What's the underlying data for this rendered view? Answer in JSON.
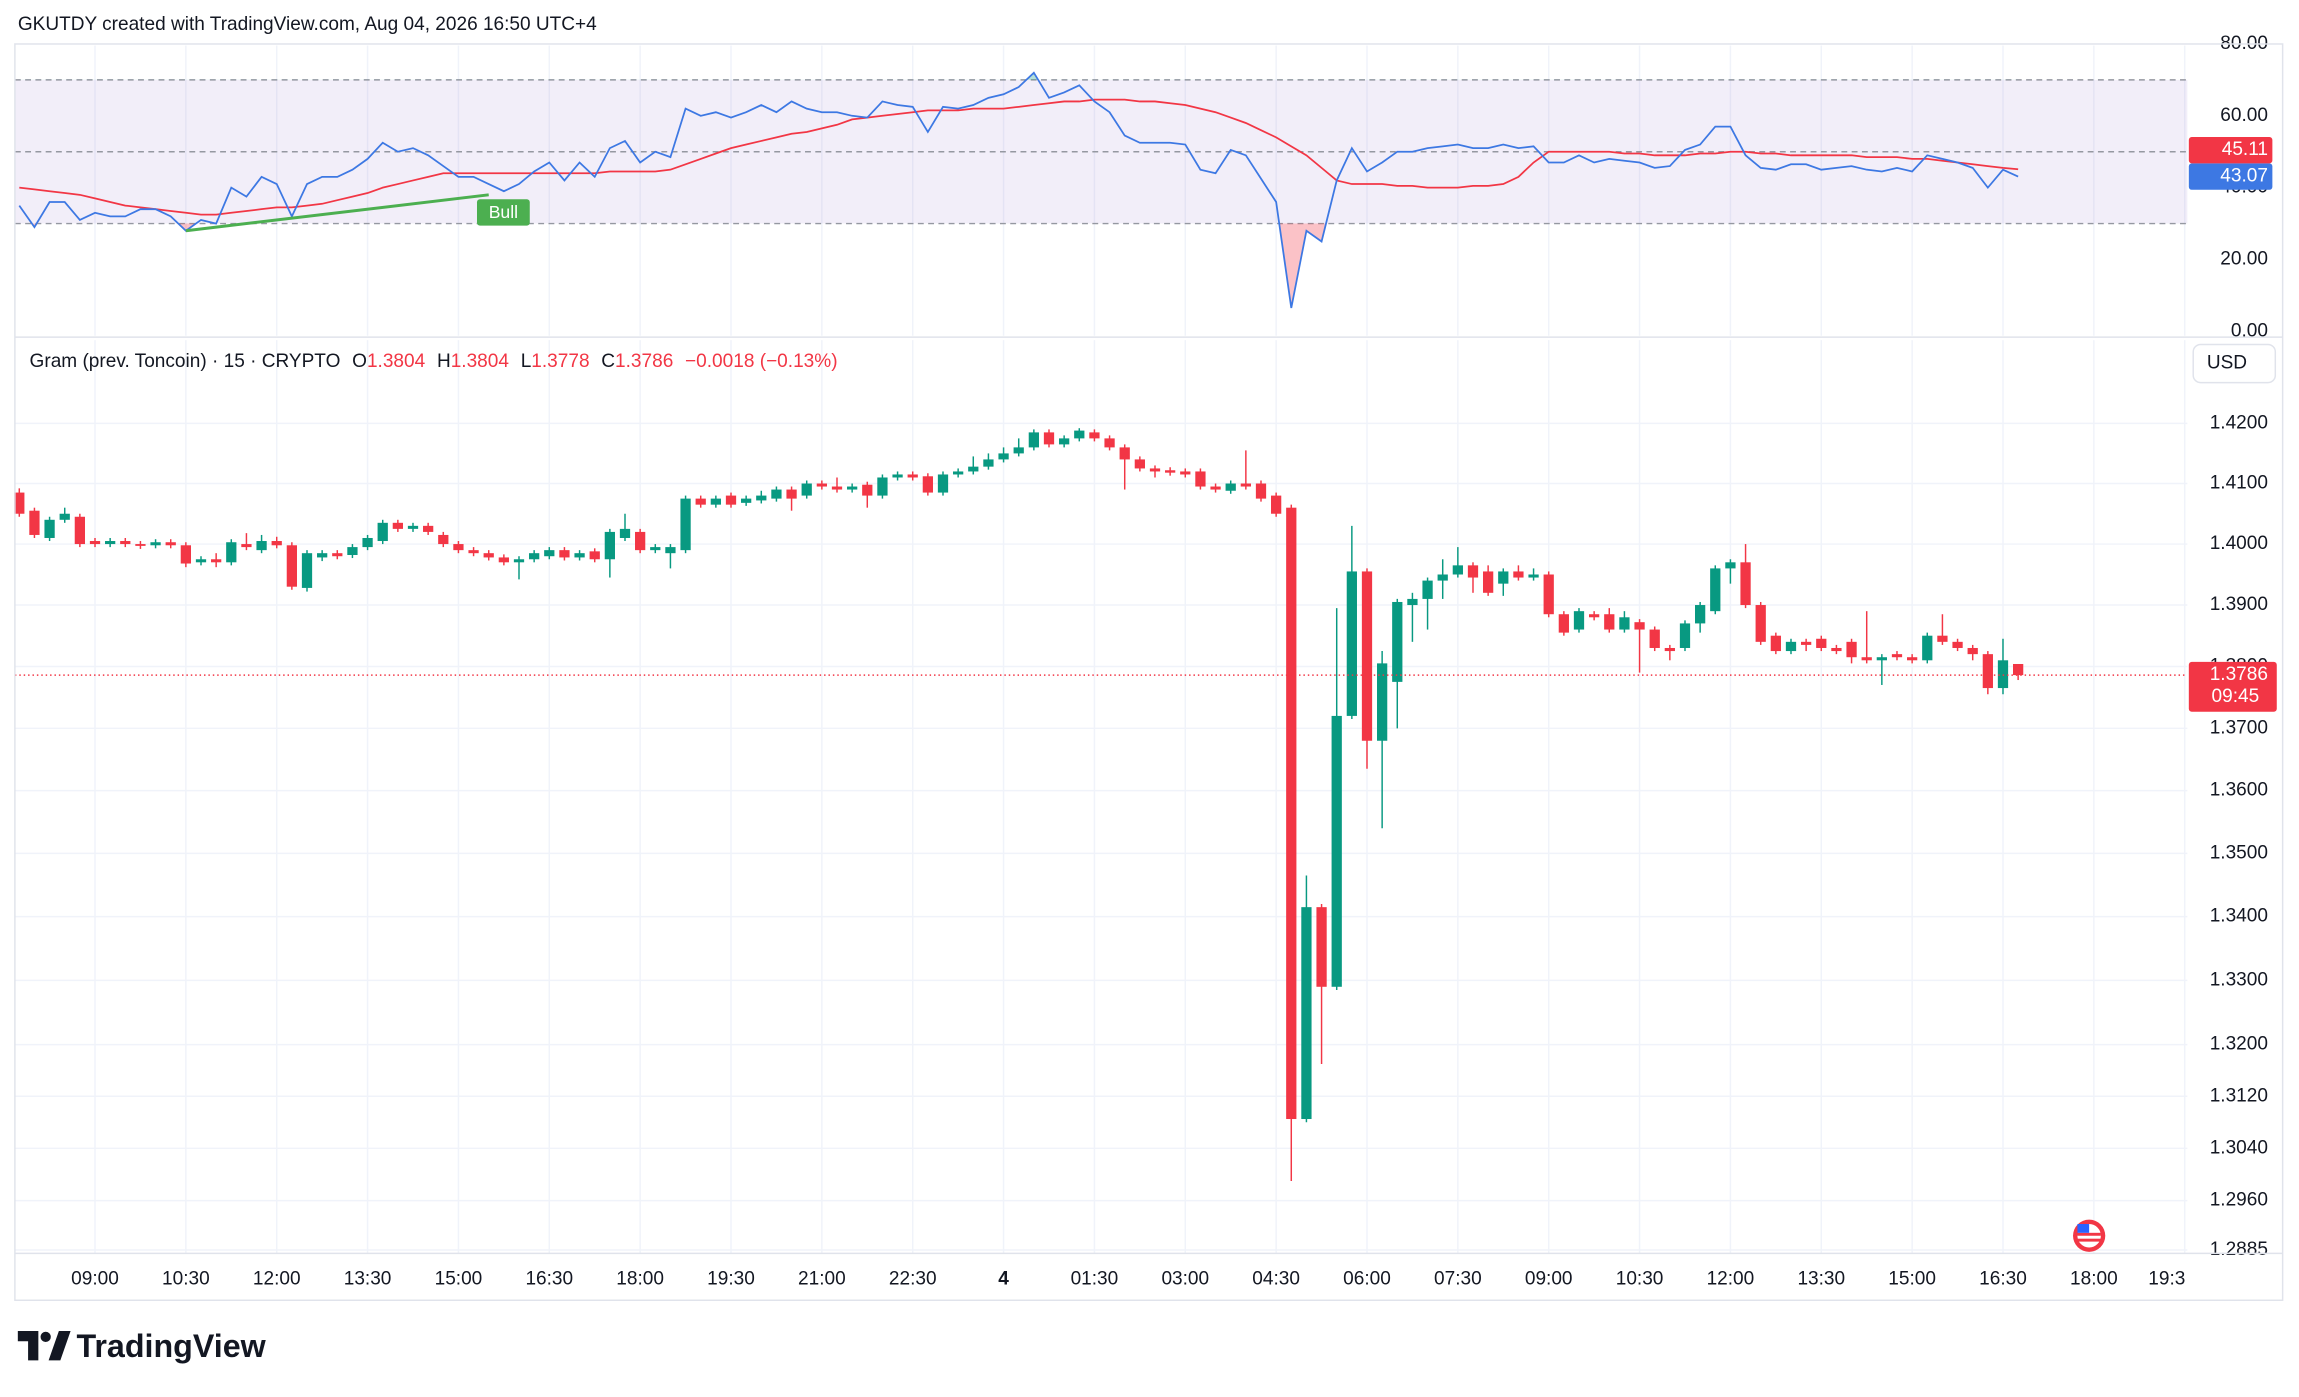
{
  "header": "GKUTDY created with TradingView.com, Aug 04, 2026 16:50 UTC+4",
  "brand": "TradingView",
  "chart_data": [
    {
      "type": "candlestick",
      "legend": {
        "symbol": "Gram (prev. Toncoin) · 15 · CRYPTO",
        "o_label": "O",
        "h_label": "H",
        "l_label": "L",
        "c_label": "C",
        "change": "−0.0018 (−0.13%)"
      },
      "currency": "USD",
      "countdown": "09:45",
      "log_scale": true,
      "grid": true,
      "up_color": "#089981",
      "down_color": "#f23645",
      "ylim": [
        1.288,
        1.432
      ],
      "yticks": [
        {
          "value": 1.42,
          "label": "1.4200"
        },
        {
          "value": 1.41,
          "label": "1.4100"
        },
        {
          "value": 1.4,
          "label": "1.4000"
        },
        {
          "value": 1.39,
          "label": "1.3900"
        },
        {
          "value": 1.38,
          "label": "1.3800"
        },
        {
          "value": 1.37,
          "label": "1.3700"
        },
        {
          "value": 1.36,
          "label": "1.3600"
        },
        {
          "value": 1.35,
          "label": "1.3500"
        },
        {
          "value": 1.34,
          "label": "1.3400"
        },
        {
          "value": 1.33,
          "label": "1.3300"
        },
        {
          "value": 1.32,
          "label": "1.3200"
        },
        {
          "value": 1.312,
          "label": "1.3120"
        },
        {
          "value": 1.304,
          "label": "1.3040"
        },
        {
          "value": 1.296,
          "label": "1.2960"
        },
        {
          "value": 1.2885,
          "label": "1.2885"
        }
      ],
      "xticks": [
        {
          "value": 5,
          "label": "09:00"
        },
        {
          "value": 11,
          "label": "10:30"
        },
        {
          "value": 17,
          "label": "12:00"
        },
        {
          "value": 23,
          "label": "13:30"
        },
        {
          "value": 29,
          "label": "15:00"
        },
        {
          "value": 35,
          "label": "16:30"
        },
        {
          "value": 41,
          "label": "18:00"
        },
        {
          "value": 47,
          "label": "19:30"
        },
        {
          "value": 53,
          "label": "21:00"
        },
        {
          "value": 59,
          "label": "22:30"
        },
        {
          "value": 65,
          "label": "4"
        },
        {
          "value": 71,
          "label": "01:30"
        },
        {
          "value": 77,
          "label": "03:00"
        },
        {
          "value": 83,
          "label": "04:30"
        },
        {
          "value": 89,
          "label": "06:00"
        },
        {
          "value": 95,
          "label": "07:30"
        },
        {
          "value": 101,
          "label": "09:00"
        },
        {
          "value": 107,
          "label": "10:30"
        },
        {
          "value": 113,
          "label": "12:00"
        },
        {
          "value": 119,
          "label": "13:30"
        },
        {
          "value": 125,
          "label": "15:00"
        },
        {
          "value": 131,
          "label": "16:30"
        },
        {
          "value": 137,
          "label": "18:00"
        },
        {
          "value": 143,
          "label": "19:3"
        }
      ],
      "open": [
        1.4085,
        1.4055,
        1.401,
        1.404,
        1.4045,
        1.4005,
        1.4,
        1.4005,
        1.4,
        1.3998,
        1.4003,
        1.3998,
        1.397,
        1.3975,
        1.397,
        1.4,
        1.399,
        1.4005,
        1.3998,
        1.3928,
        1.3978,
        1.3985,
        1.3982,
        1.3995,
        1.4005,
        1.4035,
        1.4025,
        1.403,
        1.4015,
        1.4,
        1.399,
        1.3985,
        1.3978,
        1.397,
        1.3975,
        1.398,
        1.399,
        1.3978,
        1.3988,
        1.3975,
        1.401,
        1.402,
        1.399,
        1.3985,
        1.399,
        1.4075,
        1.4065,
        1.408,
        1.4068,
        1.4072,
        1.4075,
        1.409,
        1.408,
        1.41,
        1.4095,
        1.409,
        1.4098,
        1.408,
        1.411,
        1.4115,
        1.4112,
        1.4085,
        1.4115,
        1.412,
        1.4128,
        1.414,
        1.415,
        1.416,
        1.4185,
        1.4165,
        1.4175,
        1.4185,
        1.4175,
        1.416,
        1.414,
        1.4125,
        1.4122,
        1.412,
        1.412,
        1.4095,
        1.4088,
        1.41,
        1.41,
        1.408,
        1.406,
        1.3085,
        1.3415,
        1.329,
        1.372,
        1.3955,
        1.368,
        1.3775,
        1.39,
        1.391,
        1.394,
        1.395,
        1.3965,
        1.3955,
        1.3935,
        1.3955,
        1.3945,
        1.395,
        1.3885,
        1.386,
        1.3885,
        1.3885,
        1.386,
        1.3872,
        1.386,
        1.383,
        1.383,
        1.387,
        1.389,
        1.396,
        1.397,
        1.39,
        1.385,
        1.3825,
        1.384,
        1.3845,
        1.383,
        1.384,
        1.3815,
        1.381,
        1.382,
        1.3815,
        1.381,
        1.385,
        1.384,
        1.383,
        1.382,
        1.3765,
        1.3804
      ],
      "high": [
        1.4092,
        1.406,
        1.4045,
        1.406,
        1.405,
        1.401,
        1.401,
        1.401,
        1.4005,
        1.4008,
        1.4008,
        1.4003,
        1.398,
        1.3985,
        1.4008,
        1.4018,
        1.4015,
        1.4012,
        1.4003,
        1.399,
        1.399,
        1.399,
        1.4,
        1.4015,
        1.404,
        1.404,
        1.4035,
        1.4035,
        1.402,
        1.4005,
        1.3995,
        1.399,
        1.3983,
        1.398,
        1.399,
        1.3995,
        1.3995,
        1.399,
        1.3993,
        1.4025,
        1.405,
        1.4025,
        1.4,
        1.4,
        1.408,
        1.408,
        1.408,
        1.4085,
        1.408,
        1.4088,
        1.4095,
        1.4095,
        1.4105,
        1.4105,
        1.411,
        1.41,
        1.4103,
        1.4115,
        1.412,
        1.412,
        1.4117,
        1.412,
        1.4125,
        1.4145,
        1.415,
        1.416,
        1.4175,
        1.419,
        1.419,
        1.418,
        1.4192,
        1.419,
        1.418,
        1.4165,
        1.4145,
        1.413,
        1.4127,
        1.4125,
        1.4125,
        1.41,
        1.4105,
        1.4155,
        1.4105,
        1.4085,
        1.4065,
        1.3465,
        1.342,
        1.3895,
        1.403,
        1.396,
        1.3825,
        1.391,
        1.392,
        1.3945,
        1.3975,
        1.3995,
        1.397,
        1.3965,
        1.396,
        1.3965,
        1.396,
        1.3955,
        1.389,
        1.3895,
        1.389,
        1.3895,
        1.389,
        1.3877,
        1.3865,
        1.3835,
        1.3875,
        1.3905,
        1.3965,
        1.3975,
        1.4,
        1.3905,
        1.3855,
        1.3845,
        1.3845,
        1.385,
        1.3835,
        1.3845,
        1.389,
        1.382,
        1.3825,
        1.382,
        1.3855,
        1.3885,
        1.3845,
        1.3835,
        1.3825,
        1.3845,
        1.3804
      ],
      "low": [
        1.4045,
        1.401,
        1.4005,
        1.4035,
        1.3995,
        1.3995,
        1.3995,
        1.3995,
        1.3992,
        1.3993,
        1.3993,
        1.3962,
        1.3965,
        1.3962,
        1.3965,
        1.399,
        1.3985,
        1.3993,
        1.3925,
        1.3922,
        1.3972,
        1.3975,
        1.3977,
        1.399,
        1.4,
        1.402,
        1.402,
        1.4015,
        1.3995,
        1.3985,
        1.398,
        1.3973,
        1.3965,
        1.3942,
        1.397,
        1.3975,
        1.3973,
        1.3973,
        1.397,
        1.3945,
        1.4005,
        1.3985,
        1.3985,
        1.396,
        1.3985,
        1.406,
        1.406,
        1.406,
        1.4063,
        1.4067,
        1.407,
        1.4055,
        1.4075,
        1.409,
        1.4085,
        1.4085,
        1.406,
        1.4075,
        1.4105,
        1.4105,
        1.408,
        1.408,
        1.411,
        1.4115,
        1.4123,
        1.4135,
        1.4145,
        1.4155,
        1.416,
        1.416,
        1.417,
        1.417,
        1.4155,
        1.409,
        1.412,
        1.411,
        1.4113,
        1.411,
        1.409,
        1.4085,
        1.4083,
        1.409,
        1.407,
        1.4045,
        1.299,
        1.308,
        1.317,
        1.3285,
        1.3715,
        1.3635,
        1.354,
        1.37,
        1.384,
        1.386,
        1.391,
        1.3945,
        1.392,
        1.3915,
        1.3915,
        1.394,
        1.394,
        1.388,
        1.385,
        1.3855,
        1.3875,
        1.3855,
        1.3855,
        1.379,
        1.3825,
        1.381,
        1.3825,
        1.3855,
        1.3885,
        1.3935,
        1.3895,
        1.3835,
        1.382,
        1.382,
        1.3825,
        1.3825,
        1.382,
        1.3805,
        1.3805,
        1.377,
        1.381,
        1.3805,
        1.3805,
        1.3835,
        1.3825,
        1.381,
        1.3755,
        1.3755,
        1.3778
      ],
      "close": [
        1.405,
        1.4015,
        1.404,
        1.405,
        1.4,
        1.4,
        1.4005,
        1.4,
        1.3997,
        1.4003,
        1.3998,
        1.3968,
        1.3975,
        1.397,
        1.4003,
        1.3995,
        1.4005,
        1.3998,
        1.393,
        1.3985,
        1.3985,
        1.398,
        1.3995,
        1.401,
        1.4035,
        1.4025,
        1.403,
        1.402,
        1.4,
        1.399,
        1.3985,
        1.3978,
        1.397,
        1.3975,
        1.3985,
        1.399,
        1.3978,
        1.3985,
        1.3975,
        1.402,
        1.4025,
        1.399,
        1.3995,
        1.3995,
        1.4075,
        1.4065,
        1.4075,
        1.4065,
        1.4075,
        1.408,
        1.409,
        1.4075,
        1.41,
        1.4095,
        1.409,
        1.4095,
        1.408,
        1.411,
        1.4115,
        1.411,
        1.4085,
        1.4115,
        1.412,
        1.4128,
        1.414,
        1.415,
        1.416,
        1.4185,
        1.4165,
        1.4175,
        1.4188,
        1.4175,
        1.416,
        1.414,
        1.4125,
        1.412,
        1.4118,
        1.4115,
        1.4095,
        1.409,
        1.41,
        1.4095,
        1.4075,
        1.405,
        1.3085,
        1.3415,
        1.329,
        1.372,
        1.3955,
        1.368,
        1.3805,
        1.3905,
        1.391,
        1.394,
        1.395,
        1.3965,
        1.3945,
        1.392,
        1.3955,
        1.3945,
        1.395,
        1.3885,
        1.3855,
        1.389,
        1.388,
        1.386,
        1.388,
        1.386,
        1.383,
        1.3825,
        1.387,
        1.39,
        1.396,
        1.397,
        1.39,
        1.384,
        1.3825,
        1.384,
        1.3835,
        1.383,
        1.3825,
        1.3815,
        1.381,
        1.3815,
        1.3815,
        1.381,
        1.385,
        1.384,
        1.383,
        1.382,
        1.3765,
        1.381,
        1.3786
      ]
    },
    {
      "type": "line",
      "ylim": [
        0,
        80
      ],
      "yticks": [
        {
          "value": 0,
          "label": "0.00"
        },
        {
          "value": 20,
          "label": "20.00"
        },
        {
          "value": 40,
          "label": "40.00"
        },
        {
          "value": 60,
          "label": "60.00"
        },
        {
          "value": 80,
          "label": "80.00"
        }
      ],
      "band": [
        30,
        70
      ],
      "midline": 50,
      "band_color": "#7e57c2",
      "series": [
        {
          "color": "#3d78e3",
          "values": [
            35,
            29,
            36,
            36,
            31,
            33,
            32,
            32,
            34,
            34,
            32,
            28,
            31,
            30,
            40,
            37.5,
            43,
            41,
            32,
            41,
            43,
            43,
            45,
            48,
            52.5,
            50,
            51,
            49,
            46,
            43,
            43,
            41,
            39,
            41,
            44.5,
            47,
            42,
            47,
            43,
            51,
            53,
            47,
            50,
            48.5,
            62,
            60,
            61,
            59.5,
            61,
            63,
            61,
            64,
            62,
            61,
            61,
            60,
            59.5,
            64,
            63,
            62.5,
            55.5,
            62.5,
            62,
            63,
            65,
            66,
            68,
            72,
            65,
            66.5,
            68.5,
            64,
            61,
            54.5,
            52.5,
            52.5,
            52.5,
            52,
            45,
            44,
            50.5,
            49,
            42.5,
            36,
            6.5,
            28,
            25,
            42,
            51,
            44.5,
            47,
            50,
            50,
            51,
            51.5,
            52,
            51,
            51,
            52,
            51,
            51.5,
            47,
            47,
            49,
            47,
            48,
            47.5,
            47,
            45.5,
            46,
            50.5,
            52,
            57,
            57,
            49,
            45.5,
            45,
            46.5,
            46.5,
            45,
            45.5,
            46,
            45,
            44.5,
            45.5,
            44.5,
            49,
            48,
            47,
            45.5,
            40,
            45,
            43.07
          ]
        },
        {
          "color": "#f23645",
          "values": [
            40,
            39.5,
            39,
            38.5,
            38,
            37,
            36,
            35,
            34.5,
            34,
            33.5,
            33,
            32.5,
            32.5,
            33,
            33.5,
            34,
            34.5,
            34.5,
            35,
            35.5,
            36.5,
            37.5,
            38.5,
            40,
            41,
            42,
            43,
            44,
            44,
            44,
            44,
            44,
            44,
            44,
            44,
            44,
            44,
            44,
            44.5,
            44.5,
            44.5,
            44.5,
            45,
            46.5,
            48,
            49.5,
            51,
            52,
            53,
            54,
            55,
            55.5,
            56.5,
            57.5,
            59,
            59.5,
            60,
            60.5,
            61,
            61.5,
            61.5,
            61.5,
            62,
            62,
            62,
            62.5,
            63,
            63.5,
            64,
            64,
            64.5,
            64.5,
            64.5,
            64,
            64,
            63.5,
            63,
            62,
            61,
            59.5,
            58,
            56,
            54,
            51.5,
            49,
            45.5,
            42,
            41,
            41,
            41,
            40.5,
            40.5,
            40,
            40,
            40,
            40.5,
            40.5,
            41,
            43,
            47,
            50,
            50,
            50,
            50,
            50,
            49.5,
            49.5,
            49,
            49,
            49,
            49.5,
            49.5,
            50,
            50,
            49.5,
            49.5,
            49,
            49,
            49,
            49,
            49,
            48.5,
            48.5,
            48.5,
            48,
            48,
            47.5,
            47,
            46.5,
            46,
            45.5,
            45.11
          ]
        }
      ],
      "divergence": {
        "label": "Bull",
        "color": "#4caf50",
        "x": [
          11,
          31
        ],
        "values": [
          28,
          38
        ]
      }
    }
  ]
}
